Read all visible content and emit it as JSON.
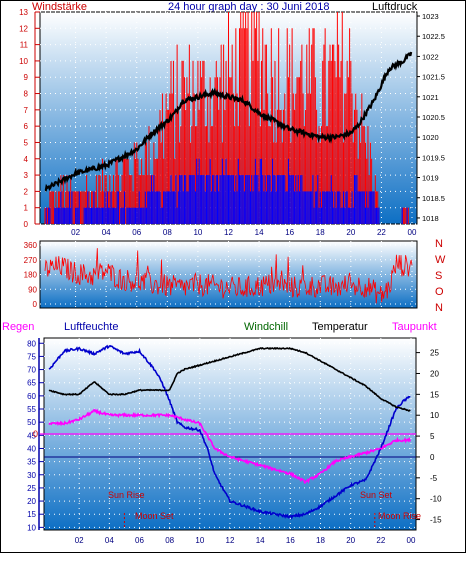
{
  "header": {
    "left_label": "Windstärke",
    "title": "24 hour graph day : 30 Juni 2018",
    "right_label": "Luftdruck"
  },
  "panel2": {
    "compass": [
      "N",
      "W",
      "S",
      "O",
      "N"
    ]
  },
  "panel3": {
    "labels": {
      "regen": "Regen",
      "luftfeuchte": "Luftfeuchte",
      "windchill": "Windchill",
      "temperatur": "Temperatur",
      "taupunkt": "Taupunkt"
    },
    "annotations": {
      "sun_rise": "Sun Rise",
      "moon_set": "Moon Set",
      "sun_set": "Sun Set",
      "moon_rise": "Moon Rise",
      "regen_zero": "0"
    }
  },
  "colors": {
    "plot_top": "#ffffff",
    "plot_bottom": "#0d6fc4",
    "wind_gust": "#ff0000",
    "wind_avg": "#0000ff",
    "pressure": "#000000",
    "humidity": "#0000cc",
    "temperature": "#000000",
    "dewpoint": "#ff00ff",
    "windchill": "#006600",
    "direction": "#ff0000",
    "left_axis": "#cc0000",
    "right_axis_top": "#000000",
    "humidity_axis": "#0000aa",
    "annotation": "#cc0000"
  },
  "chart_data": [
    {
      "type": "bar+line",
      "x_ticks": [
        "02",
        "04",
        "06",
        "08",
        "10",
        "12",
        "14",
        "16",
        "18",
        "20",
        "22",
        "00"
      ],
      "wind_yticks": [
        0,
        1,
        2,
        3,
        4,
        5,
        6,
        7,
        8,
        9,
        10,
        11,
        12,
        13
      ],
      "pressure_yticks": [
        1018,
        1018.5,
        1019,
        1019.5,
        1020,
        1020.5,
        1021,
        1021.5,
        1022,
        1022.5,
        1023
      ],
      "wind_ylim": [
        0,
        13
      ],
      "pressure_ylim": [
        1017.85,
        1023.1
      ],
      "pressure_series": {
        "x": [
          0,
          0.5,
          1,
          2,
          3,
          4,
          5,
          6,
          7,
          8,
          8.5,
          9,
          10,
          11,
          12,
          13,
          14,
          15,
          16,
          17,
          18,
          19,
          20,
          20.5,
          21,
          21.5,
          22,
          22.5,
          23,
          23.5,
          24
        ],
        "y": [
          1018.7,
          1018.8,
          1018.9,
          1019.1,
          1019.2,
          1019.3,
          1019.5,
          1019.7,
          1020.1,
          1020.4,
          1020.6,
          1020.9,
          1021.0,
          1021.1,
          1021.0,
          1020.9,
          1020.6,
          1020.4,
          1020.2,
          1020.1,
          1020.0,
          1020.0,
          1020.1,
          1020.3,
          1020.6,
          1020.9,
          1021.3,
          1021.7,
          1021.8,
          1021.9,
          1022.1
        ]
      },
      "gust_series": {
        "x": [
          0,
          1,
          2,
          3,
          4,
          5,
          6,
          7,
          8,
          9,
          10,
          11,
          12,
          13,
          14,
          15,
          16,
          17,
          18,
          19,
          20,
          21,
          21.7,
          22,
          23,
          23.5,
          24
        ],
        "y": [
          1,
          2,
          2,
          2,
          3,
          3,
          4,
          4,
          7,
          8,
          8,
          8,
          9,
          10,
          11,
          9,
          9,
          9,
          8,
          9,
          9,
          5,
          2,
          0,
          0,
          1,
          0
        ]
      },
      "avg_series": {
        "x": [
          0,
          1,
          2,
          3,
          4,
          5,
          6,
          7,
          8,
          9,
          10,
          11,
          12,
          13,
          14,
          15,
          16,
          17,
          18,
          19,
          20,
          21,
          21.7,
          22,
          23,
          23.5,
          24
        ],
        "y": [
          0,
          1,
          1,
          1,
          1,
          1,
          1,
          2,
          2,
          2,
          3,
          3,
          3,
          3,
          3,
          3,
          3,
          2,
          2,
          2,
          2,
          2,
          1,
          0,
          0,
          0,
          0
        ]
      }
    },
    {
      "type": "line",
      "yticks": [
        0,
        90,
        180,
        270,
        360
      ],
      "ylim": [
        0,
        360
      ],
      "direction_series": {
        "x": [
          0,
          1,
          2,
          3,
          4,
          5,
          6,
          7,
          8,
          9,
          10,
          11,
          12,
          13,
          14,
          15,
          16,
          17,
          18,
          19,
          20,
          21,
          22,
          22.5,
          23,
          23.5,
          24
        ],
        "y": [
          210,
          230,
          190,
          170,
          200,
          150,
          140,
          120,
          110,
          100,
          120,
          110,
          100,
          95,
          110,
          120,
          100,
          105,
          110,
          100,
          115,
          110,
          50,
          100,
          250,
          230,
          240
        ]
      }
    },
    {
      "type": "line",
      "humidity_yticks": [
        10,
        15,
        20,
        25,
        30,
        35,
        40,
        45,
        50,
        55,
        60,
        65,
        70,
        75,
        80
      ],
      "humidity_ylim": [
        9,
        82
      ],
      "temp_yticks": [
        -15,
        -10,
        -5,
        0,
        5,
        10,
        15,
        20,
        25
      ],
      "temp_ylim": [
        -17.5,
        28.5
      ],
      "humidity_series": {
        "x": [
          0,
          1,
          2,
          3,
          4,
          5,
          6,
          7,
          7.5,
          8,
          8.5,
          9,
          10,
          10.5,
          11,
          12,
          13,
          14,
          15,
          16,
          17,
          18,
          19,
          20,
          21,
          22,
          23,
          23.5,
          24
        ],
        "y": [
          70,
          77,
          78,
          76,
          79,
          76,
          77,
          70,
          65,
          58,
          50,
          48,
          47,
          40,
          30,
          20,
          18,
          16,
          15,
          14,
          15,
          18,
          22,
          26,
          28,
          40,
          55,
          58,
          60
        ]
      },
      "temperature_series": {
        "x": [
          0,
          1,
          2,
          3,
          4,
          5,
          6,
          7,
          8,
          8.5,
          9,
          10,
          11,
          12,
          13,
          14,
          15,
          16,
          17,
          18,
          19,
          20,
          21,
          22,
          23,
          24
        ],
        "y": [
          16,
          15,
          15,
          18,
          15,
          15,
          16,
          16,
          16,
          20,
          21,
          22,
          23,
          24,
          25,
          26,
          26,
          26,
          25,
          23,
          21,
          19,
          17,
          14,
          12,
          11
        ]
      },
      "dewpoint_series": {
        "x": [
          0,
          1,
          2,
          3,
          4,
          5,
          6,
          7,
          8,
          9,
          10,
          11,
          12,
          13,
          14,
          15,
          16,
          17,
          18,
          19,
          20,
          21,
          22,
          23,
          24
        ],
        "y": [
          8,
          8,
          9,
          11,
          10,
          10,
          10,
          10,
          10,
          9,
          8,
          2,
          0,
          -1,
          -2,
          -3,
          -4,
          -6,
          -4,
          -1,
          0,
          1,
          2,
          4,
          4
        ]
      },
      "regen_zero_y": 0
    }
  ]
}
